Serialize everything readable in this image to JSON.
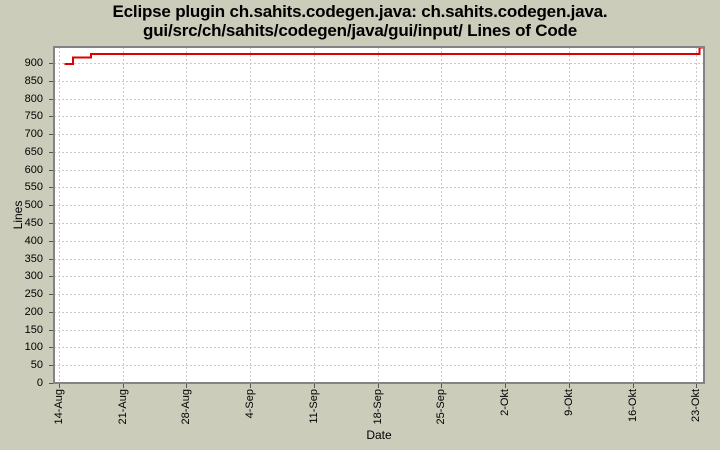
{
  "title": {
    "line1": "Eclipse plugin ch.sahits.codegen.java: ch.sahits.codegen.java.",
    "line2": "gui/src/ch/sahits/codegen/java/gui/input/ Lines of Code"
  },
  "colors": {
    "background": "#ccccbb",
    "plot_background": "#ffffff",
    "line": "#dc0000",
    "grid": "#c9c9c9",
    "plot_border": "#848284",
    "tick": "#555555",
    "text": "#000000"
  },
  "chart_data": {
    "type": "line",
    "step": "post",
    "title": "Eclipse plugin ch.sahits.codegen.java: ch.sahits.codegen.java.gui/src/ch/sahits/codegen/java/gui/input/ Lines of Code",
    "xlabel": "Date",
    "ylabel": "Lines",
    "grid": "dashed",
    "legend": "none",
    "x_ticks": [
      {
        "day": 0,
        "label": "14-Aug"
      },
      {
        "day": 7,
        "label": "21-Aug"
      },
      {
        "day": 14,
        "label": "28-Aug"
      },
      {
        "day": 21,
        "label": "4-Sep"
      },
      {
        "day": 28,
        "label": "11-Sep"
      },
      {
        "day": 35,
        "label": "18-Sep"
      },
      {
        "day": 42,
        "label": "25-Sep"
      },
      {
        "day": 49,
        "label": "2-Okt"
      },
      {
        "day": 56,
        "label": "9-Okt"
      },
      {
        "day": 63,
        "label": "16-Okt"
      },
      {
        "day": 70,
        "label": "23-Okt"
      }
    ],
    "xlim_days": [
      -0.53,
      70.85
    ],
    "y_ticks": [
      0,
      50,
      100,
      150,
      200,
      250,
      300,
      350,
      400,
      450,
      500,
      550,
      600,
      650,
      700,
      750,
      800,
      850,
      900
    ],
    "ylim": [
      0,
      945
    ],
    "series": [
      {
        "name": "Lines of Code",
        "color": "#dc0000",
        "points": [
          {
            "day": 0.65,
            "date": "15-Aug",
            "value": 897
          },
          {
            "day": 1.55,
            "date": "16-Aug",
            "value": 915
          },
          {
            "day": 3.55,
            "date": "18-Aug",
            "value": 925
          },
          {
            "day": 70.35,
            "date": "23-Okt",
            "value": 944
          },
          {
            "day": 70.85,
            "date": "23-Okt",
            "value": 944
          }
        ]
      }
    ]
  }
}
